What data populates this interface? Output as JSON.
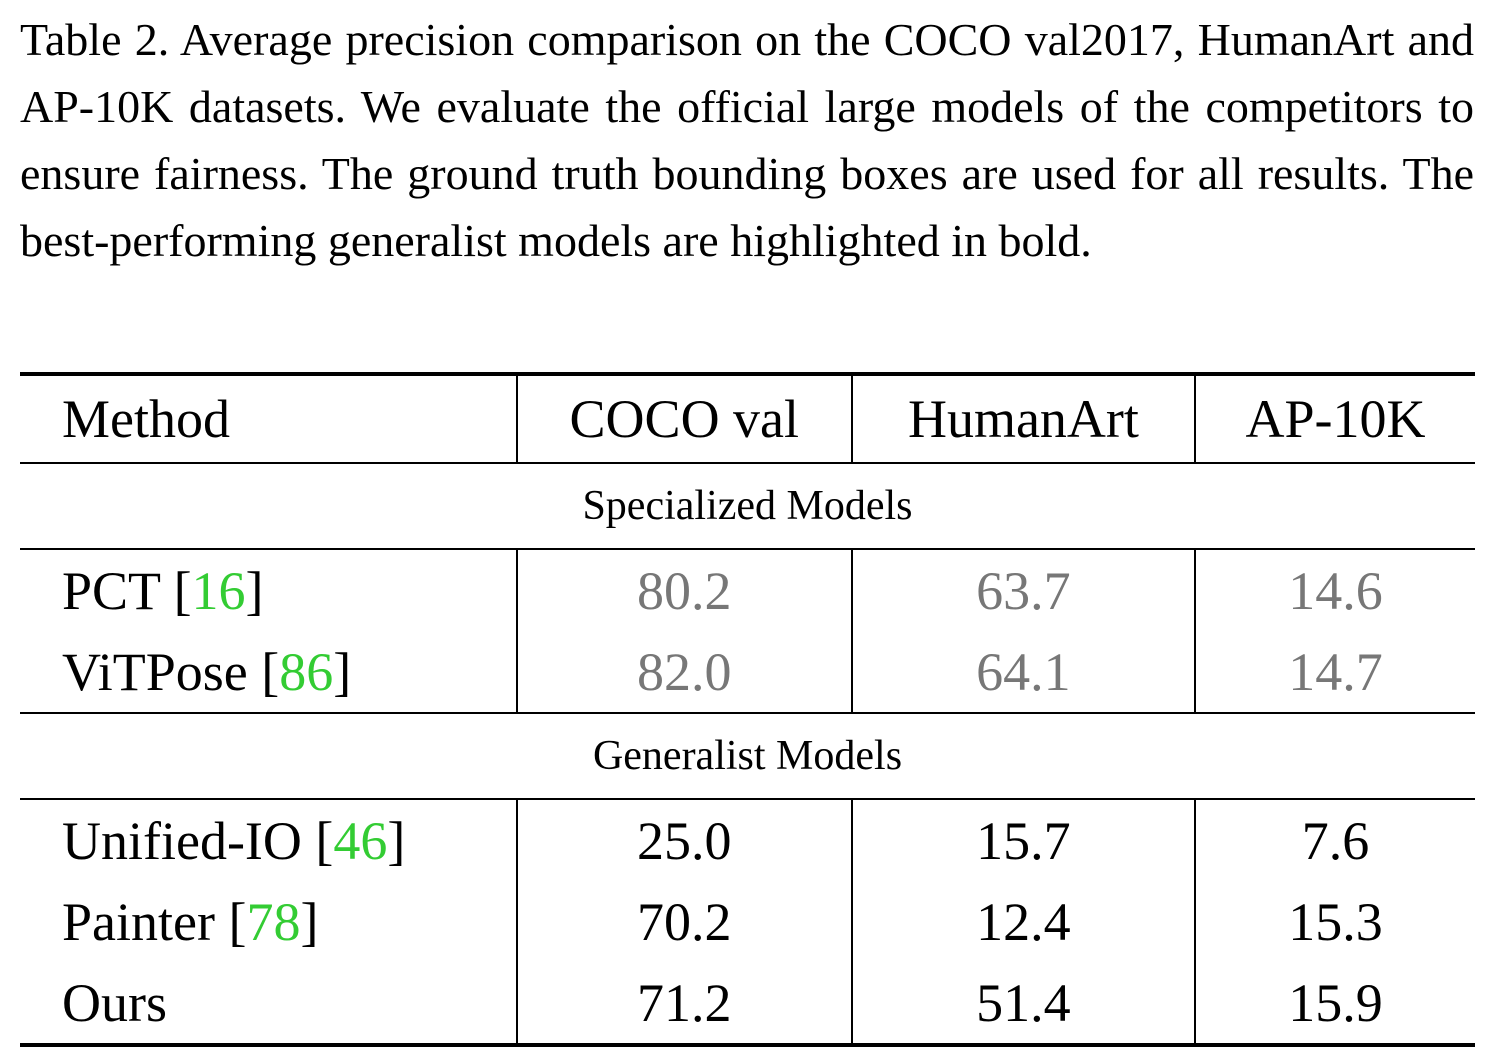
{
  "caption": "Table 2. Average precision comparison on the COCO val2017, HumanArt and AP-10K datasets. We evaluate the official large models of the competitors to ensure fairness. The ground truth bounding boxes are used for all results. The best-performing generalist models are highlighted in bold.",
  "table": {
    "headers": [
      "Method",
      "COCO val",
      "HumanArt",
      "AP-10K"
    ],
    "sections": [
      {
        "title": "Specialized Models",
        "rows": [
          {
            "method": "PCT",
            "cite": "16",
            "coco": "80.2",
            "humanart": "63.7",
            "ap10k": "14.6"
          },
          {
            "method": "ViTPose",
            "cite": "86",
            "coco": "82.0",
            "humanart": "64.1",
            "ap10k": "14.7"
          }
        ]
      },
      {
        "title": "Generalist Models",
        "rows": [
          {
            "method": "Unified-IO",
            "cite": "46",
            "coco": "25.0",
            "humanart": "15.7",
            "ap10k": "7.6"
          },
          {
            "method": "Painter",
            "cite": "78",
            "coco": "70.2",
            "humanart": "12.4",
            "ap10k": "15.3"
          },
          {
            "method": "Ours",
            "cite": "",
            "coco": "71.2",
            "humanart": "51.4",
            "ap10k": "15.9"
          }
        ]
      }
    ]
  },
  "colors": {
    "text": "#000000",
    "specialized_values": "#777777",
    "citation": "#33cc33"
  }
}
